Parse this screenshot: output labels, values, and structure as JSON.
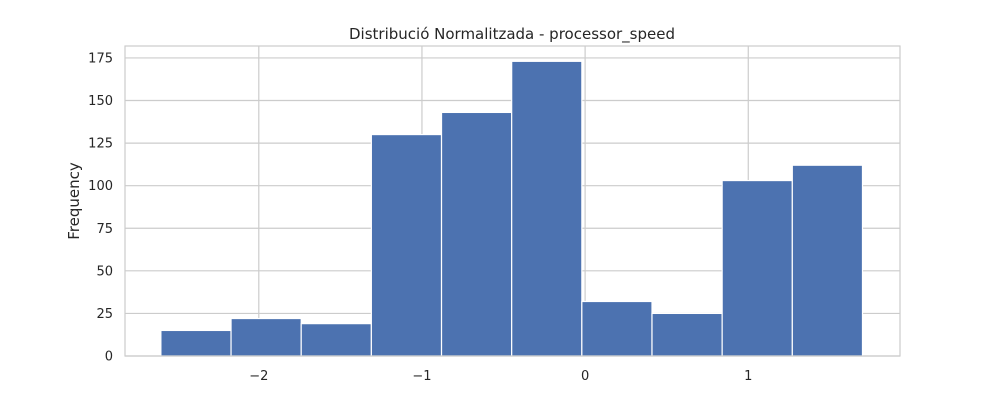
{
  "chart_data": {
    "type": "bar",
    "title": "Distribució Normalitzada - processor_speed",
    "xlabel": "",
    "ylabel": "Frequency",
    "bin_edges": [
      -2.6,
      -2.17,
      -1.74,
      -1.31,
      -0.88,
      -0.45,
      -0.02,
      0.41,
      0.84,
      1.27,
      1.7
    ],
    "values": [
      15,
      22,
      19,
      130,
      143,
      173,
      32,
      25,
      103,
      112
    ],
    "xlim": [
      -2.82,
      1.93
    ],
    "ylim": [
      0,
      182
    ],
    "xticks": [
      -2,
      -1,
      0,
      1
    ],
    "xtick_labels": [
      "−2",
      "−1",
      "0",
      "1"
    ],
    "yticks": [
      0,
      25,
      50,
      75,
      100,
      125,
      150,
      175
    ],
    "ytick_labels": [
      "0",
      "25",
      "50",
      "75",
      "100",
      "125",
      "150",
      "175"
    ],
    "grid": true,
    "bar_color": "#4c72b0",
    "grid_color": "#cccccc",
    "background_color": "#ffffff"
  }
}
